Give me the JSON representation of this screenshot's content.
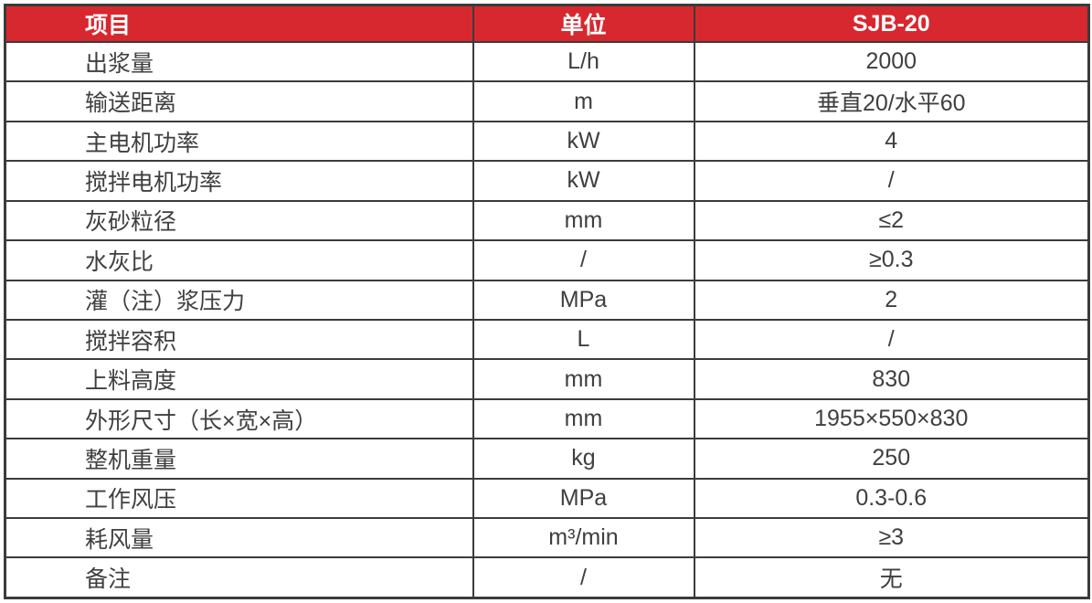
{
  "table": {
    "accent_color": "#d7282f",
    "border_color": "#3b3b3b",
    "header_text_color": "#ffffff",
    "body_text_color": "#3f3f3f",
    "columns": {
      "item": "项目",
      "unit": "单位",
      "model": "SJB-20"
    },
    "rows": [
      {
        "item": "出浆量",
        "unit": "L/h",
        "value": "2000"
      },
      {
        "item": "输送距离",
        "unit": "m",
        "value": "垂直20/水平60"
      },
      {
        "item": "主电机功率",
        "unit": "kW",
        "value": "4"
      },
      {
        "item": "搅拌电机功率",
        "unit": "kW",
        "value": "/"
      },
      {
        "item": "灰砂粒径",
        "unit": "mm",
        "value": "≤2"
      },
      {
        "item": "水灰比",
        "unit": "/",
        "value": "≥0.3"
      },
      {
        "item": "灌（注）浆压力",
        "unit": "MPa",
        "value": "2"
      },
      {
        "item": "搅拌容积",
        "unit": "L",
        "value": "/"
      },
      {
        "item": "上料高度",
        "unit": "mm",
        "value": "830"
      },
      {
        "item": "外形尺寸（长×宽×高）",
        "unit": "mm",
        "value": "1955×550×830"
      },
      {
        "item": "整机重量",
        "unit": "kg",
        "value": "250"
      },
      {
        "item": "工作风压",
        "unit": "MPa",
        "value": "0.3-0.6"
      },
      {
        "item": "耗风量",
        "unit": "m³/min",
        "value": "≥3"
      },
      {
        "item": "备注",
        "unit": "/",
        "value": "无"
      }
    ]
  }
}
